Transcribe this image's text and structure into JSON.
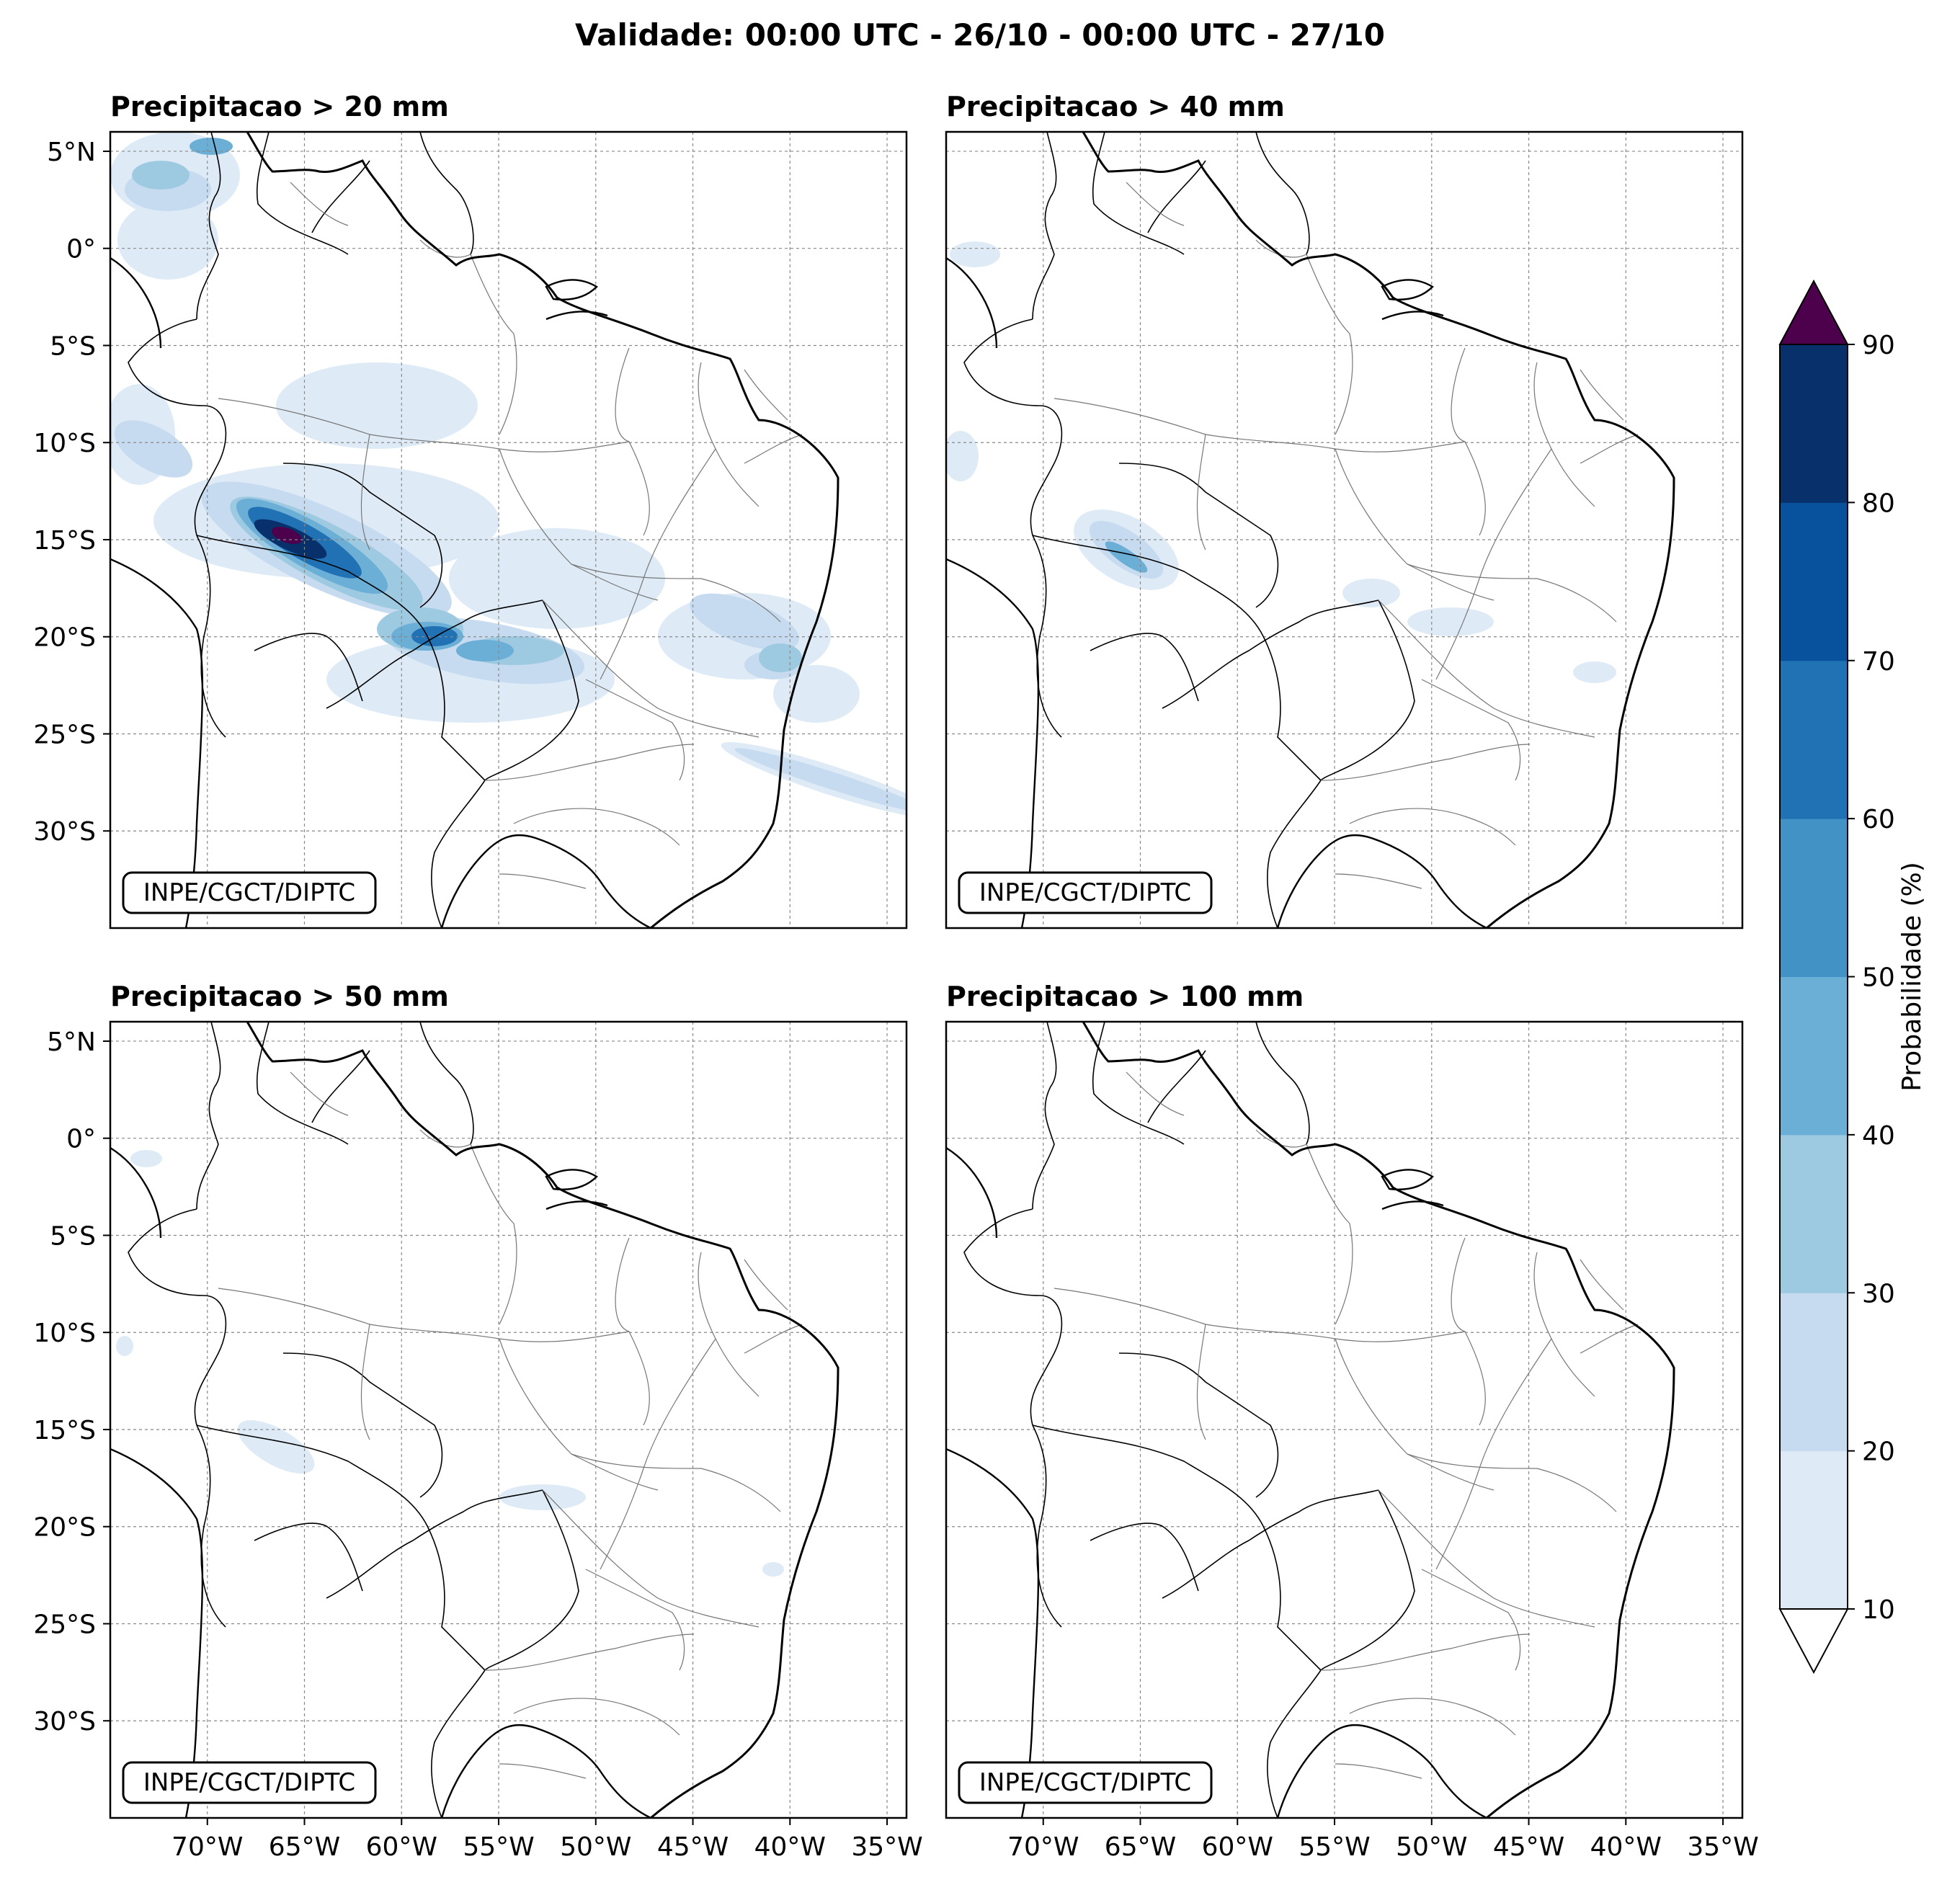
{
  "title": "Validade: 00:00 UTC - 26/10 - 00:00 UTC - 27/10",
  "panels": [
    {
      "title": "Precipitacao > 20 mm",
      "credit": "INPE/CGCT/DIPTC"
    },
    {
      "title": "Precipitacao > 40 mm",
      "credit": "INPE/CGCT/DIPTC"
    },
    {
      "title": "Precipitacao > 50 mm",
      "credit": "INPE/CGCT/DIPTC"
    },
    {
      "title": "Precipitacao > 100 mm",
      "credit": "INPE/CGCT/DIPTC"
    }
  ],
  "lat_ticks": [
    "5°N",
    "0°",
    "5°S",
    "10°S",
    "15°S",
    "20°S",
    "25°S",
    "30°S"
  ],
  "lat_values": [
    5,
    0,
    -5,
    -10,
    -15,
    -20,
    -25,
    -30
  ],
  "lon_ticks": [
    "70°W",
    "65°W",
    "60°W",
    "55°W",
    "50°W",
    "45°W",
    "40°W",
    "35°W"
  ],
  "lon_values": [
    -70,
    -65,
    -60,
    -55,
    -50,
    -45,
    -40,
    -35
  ],
  "extent": {
    "lon_min": -75,
    "lon_max": -34,
    "lat_min": -35,
    "lat_max": 6
  },
  "colorbar": {
    "label": "Probabilidade (%)",
    "ticks": [
      "10",
      "20",
      "30",
      "40",
      "50",
      "60",
      "70",
      "80",
      "90"
    ],
    "levels": [
      10,
      20,
      30,
      40,
      50,
      60,
      70,
      80,
      90
    ],
    "colors": [
      "#deebf7",
      "#c6dbef",
      "#9ecae1",
      "#6baed6",
      "#4292c6",
      "#2171b5",
      "#08519c",
      "#08306b"
    ],
    "over_color": "#4d004b",
    "under_color": "#ffffff"
  }
}
